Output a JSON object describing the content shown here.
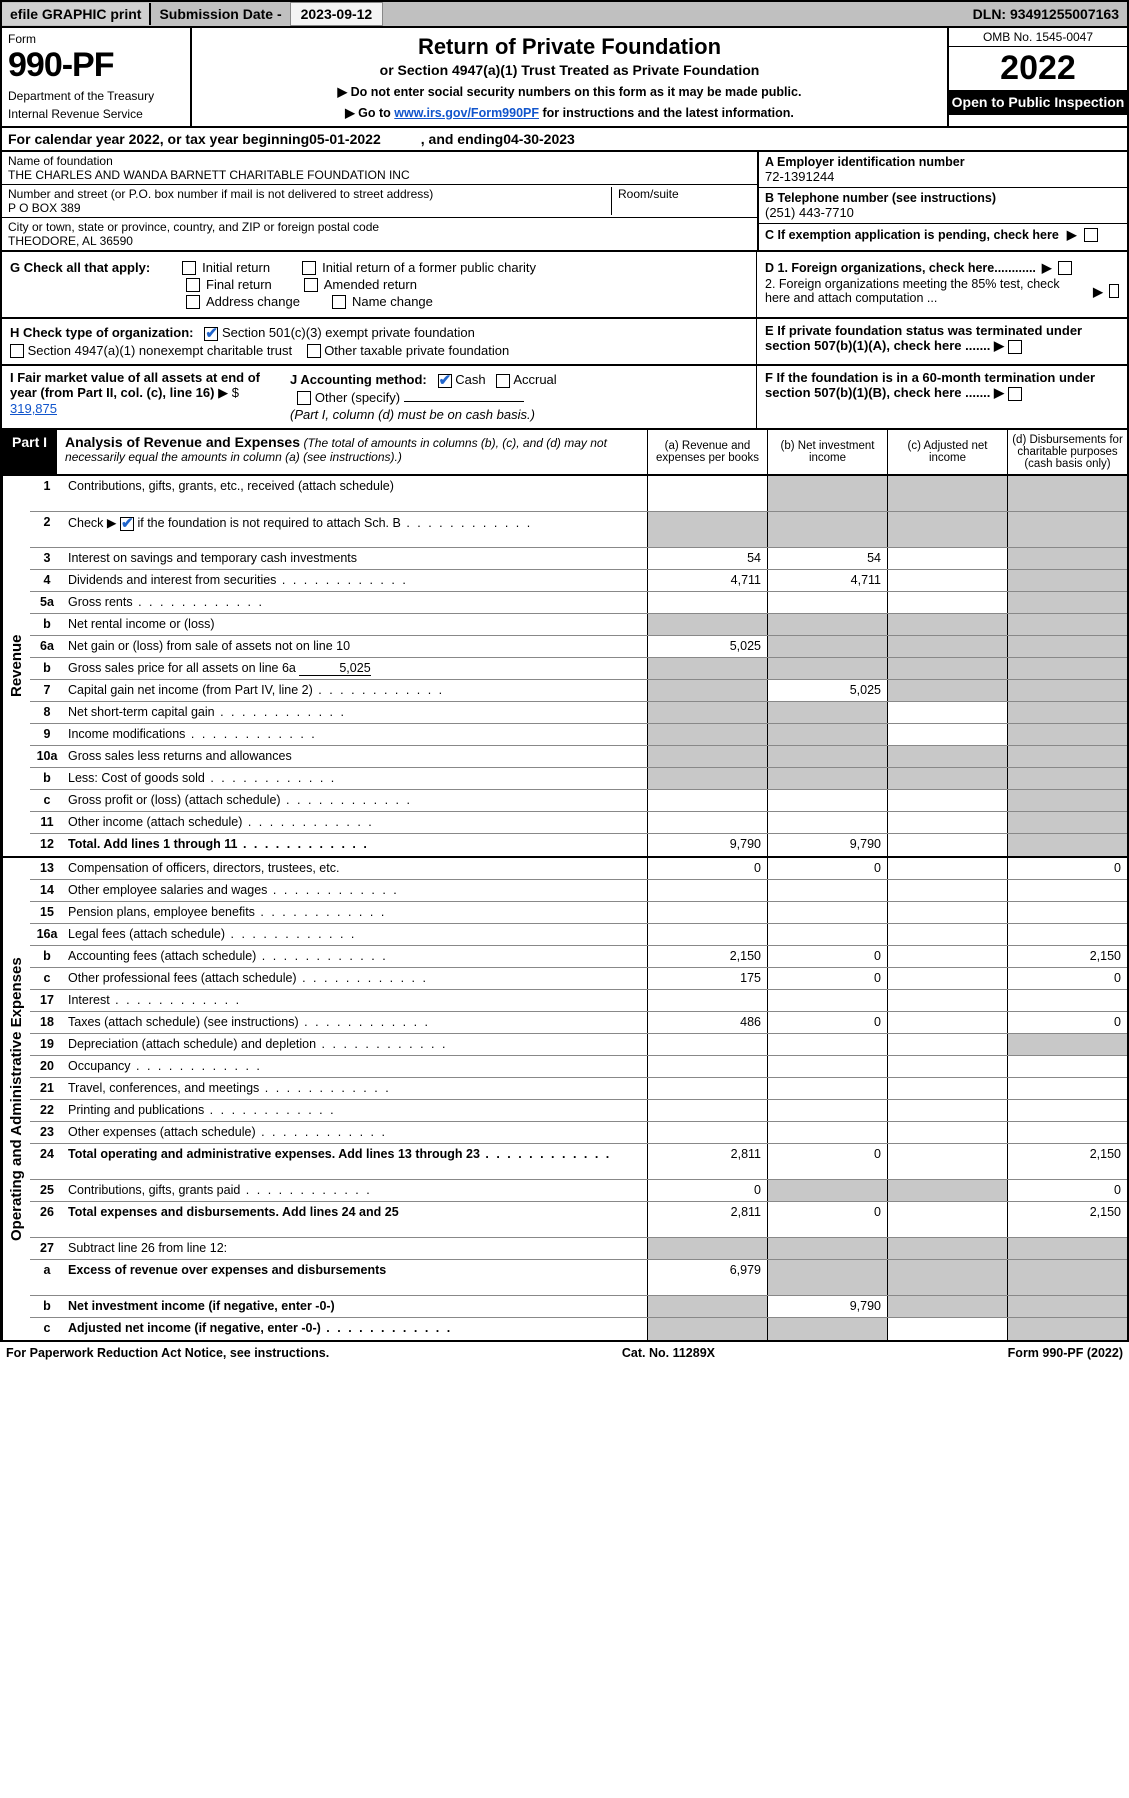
{
  "colors": {
    "bg": "#ffffff",
    "text": "#000000",
    "shade": "#c8c8c8",
    "black": "#000000",
    "link": "#1155cc",
    "checkblue": "#2266cc",
    "topbar_bg": "#c0c0c0"
  },
  "topbar": {
    "efile": "efile GRAPHIC print",
    "sub_label": "Submission Date - ",
    "sub_val": "2023-09-12",
    "dln": "DLN: 93491255007163"
  },
  "header": {
    "form_label": "Form",
    "form_no": "990-PF",
    "dept": "Department of the Treasury",
    "irs": "Internal Revenue Service",
    "title": "Return of Private Foundation",
    "sub1": "or Section 4947(a)(1) Trust Treated as Private Foundation",
    "sub2a": "▶ Do not enter social security numbers on this form as it may be made public.",
    "sub2b_pre": "▶ Go to ",
    "sub2b_link": "www.irs.gov/Form990PF",
    "sub2b_post": " for instructions and the latest information.",
    "omb": "OMB No. 1545-0047",
    "year": "2022",
    "open": "Open to Public Inspection"
  },
  "cal": {
    "pre": "For calendar year 2022, or tax year beginning ",
    "begin": "05-01-2022",
    "mid": ", and ending ",
    "end": "04-30-2023"
  },
  "id": {
    "name_lbl": "Name of foundation",
    "name": "THE CHARLES AND WANDA BARNETT CHARITABLE FOUNDATION INC",
    "addr_lbl": "Number and street (or P.O. box number if mail is not delivered to street address)",
    "addr": "P O BOX 389",
    "room_lbl": "Room/suite",
    "city_lbl": "City or town, state or province, country, and ZIP or foreign postal code",
    "city": "THEODORE, AL  36590",
    "a_lbl": "A Employer identification number",
    "a_val": "72-1391244",
    "b_lbl": "B Telephone number (see instructions)",
    "b_val": "(251) 443-7710",
    "c_lbl": "C If exemption application is pending, check here"
  },
  "g": {
    "lbl": "G Check all that apply:",
    "o1": "Initial return",
    "o2": "Initial return of a former public charity",
    "o3": "Final return",
    "o4": "Amended return",
    "o5": "Address change",
    "o6": "Name change"
  },
  "d": {
    "d1": "D 1. Foreign organizations, check here............",
    "d2": "2. Foreign organizations meeting the 85% test, check here and attach computation ...",
    "e": "E  If private foundation status was terminated under section 507(b)(1)(A), check here .......",
    "f": "F  If the foundation is in a 60-month termination under section 507(b)(1)(B), check here ......."
  },
  "h": {
    "lbl": "H Check type of organization:",
    "o1": "Section 501(c)(3) exempt private foundation",
    "o2": "Section 4947(a)(1) nonexempt charitable trust",
    "o3": "Other taxable private foundation"
  },
  "i": {
    "lbl": "I Fair market value of all assets at end of year (from Part II, col. (c), line 16)",
    "arrow": "▶ $",
    "val": "319,875"
  },
  "j": {
    "lbl": "J Accounting method:",
    "cash": "Cash",
    "accrual": "Accrual",
    "other": "Other (specify)",
    "note": "(Part I, column (d) must be on cash basis.)"
  },
  "part1": {
    "tag": "Part I",
    "title": "Analysis of Revenue and Expenses",
    "note": "(The total of amounts in columns (b), (c), and (d) may not necessarily equal the amounts in column (a) (see instructions).)",
    "col_a": "(a)  Revenue and expenses per books",
    "col_b": "(b)  Net investment income",
    "col_c": "(c)  Adjusted net income",
    "col_d": "(d)  Disbursements for charitable purposes (cash basis only)"
  },
  "sections": {
    "rev": "Revenue",
    "exp": "Operating and Administrative Expenses"
  },
  "rows": {
    "r1": {
      "n": "1",
      "d": "Contributions, gifts, grants, etc., received (attach schedule)"
    },
    "r2": {
      "n": "2",
      "d_pre": "Check ▶ ",
      "d_post": " if the foundation is not required to attach Sch. B",
      "dots": true
    },
    "r3": {
      "n": "3",
      "d": "Interest on savings and temporary cash investments",
      "a": "54",
      "b": "54"
    },
    "r4": {
      "n": "4",
      "d": "Dividends and interest from securities",
      "a": "4,711",
      "b": "4,711",
      "dots": true
    },
    "r5a": {
      "n": "5a",
      "d": "Gross rents",
      "dots": true
    },
    "r5b": {
      "n": "b",
      "d": "Net rental income or (loss)"
    },
    "r6a": {
      "n": "6a",
      "d": "Net gain or (loss) from sale of assets not on line 10",
      "a": "5,025"
    },
    "r6b": {
      "n": "b",
      "d_pre": "Gross sales price for all assets on line 6a ",
      "u": "5,025"
    },
    "r7": {
      "n": "7",
      "d": "Capital gain net income (from Part IV, line 2)",
      "b": "5,025",
      "dots": true
    },
    "r8": {
      "n": "8",
      "d": "Net short-term capital gain",
      "dots": true
    },
    "r9": {
      "n": "9",
      "d": "Income modifications",
      "dots": true
    },
    "r10a": {
      "n": "10a",
      "d": "Gross sales less returns and allowances"
    },
    "r10b": {
      "n": "b",
      "d": "Less: Cost of goods sold",
      "dots": true
    },
    "r10c": {
      "n": "c",
      "d": "Gross profit or (loss) (attach schedule)",
      "dots": true
    },
    "r11": {
      "n": "11",
      "d": "Other income (attach schedule)",
      "dots": true
    },
    "r12": {
      "n": "12",
      "d": "Total. Add lines 1 through 11",
      "a": "9,790",
      "b": "9,790",
      "bold": true,
      "dots": true
    },
    "r13": {
      "n": "13",
      "d": "Compensation of officers, directors, trustees, etc.",
      "a": "0",
      "b": "0",
      "dd": "0"
    },
    "r14": {
      "n": "14",
      "d": "Other employee salaries and wages",
      "dots": true
    },
    "r15": {
      "n": "15",
      "d": "Pension plans, employee benefits",
      "dots": true
    },
    "r16a": {
      "n": "16a",
      "d": "Legal fees (attach schedule)",
      "dots": true
    },
    "r16b": {
      "n": "b",
      "d": "Accounting fees (attach schedule)",
      "a": "2,150",
      "b": "0",
      "dd": "2,150",
      "dots": true
    },
    "r16c": {
      "n": "c",
      "d": "Other professional fees (attach schedule)",
      "a": "175",
      "b": "0",
      "dd": "0",
      "dots": true
    },
    "r17": {
      "n": "17",
      "d": "Interest",
      "dots": true
    },
    "r18": {
      "n": "18",
      "d": "Taxes (attach schedule) (see instructions)",
      "a": "486",
      "b": "0",
      "dd": "0",
      "dots": true
    },
    "r19": {
      "n": "19",
      "d": "Depreciation (attach schedule) and depletion",
      "dots": true
    },
    "r20": {
      "n": "20",
      "d": "Occupancy",
      "dots": true
    },
    "r21": {
      "n": "21",
      "d": "Travel, conferences, and meetings",
      "dots": true
    },
    "r22": {
      "n": "22",
      "d": "Printing and publications",
      "dots": true
    },
    "r23": {
      "n": "23",
      "d": "Other expenses (attach schedule)",
      "dots": true
    },
    "r24": {
      "n": "24",
      "d": "Total operating and administrative expenses. Add lines 13 through 23",
      "a": "2,811",
      "b": "0",
      "dd": "2,150",
      "bold": true,
      "dots": true
    },
    "r25": {
      "n": "25",
      "d": "Contributions, gifts, grants paid",
      "a": "0",
      "dd": "0",
      "dots": true
    },
    "r26": {
      "n": "26",
      "d": "Total expenses and disbursements. Add lines 24 and 25",
      "a": "2,811",
      "b": "0",
      "dd": "2,150",
      "bold": true
    },
    "r27": {
      "n": "27",
      "d": "Subtract line 26 from line 12:"
    },
    "r27a": {
      "n": "a",
      "d": "Excess of revenue over expenses and disbursements",
      "a": "6,979",
      "bold": true
    },
    "r27b": {
      "n": "b",
      "d": "Net investment income (if negative, enter -0-)",
      "b": "9,790",
      "bold": true
    },
    "r27c": {
      "n": "c",
      "d": "Adjusted net income (if negative, enter -0-)",
      "bold": true,
      "dots": true
    }
  },
  "footer": {
    "left": "For Paperwork Reduction Act Notice, see instructions.",
    "mid": "Cat. No. 11289X",
    "right": "Form 990-PF (2022)"
  }
}
